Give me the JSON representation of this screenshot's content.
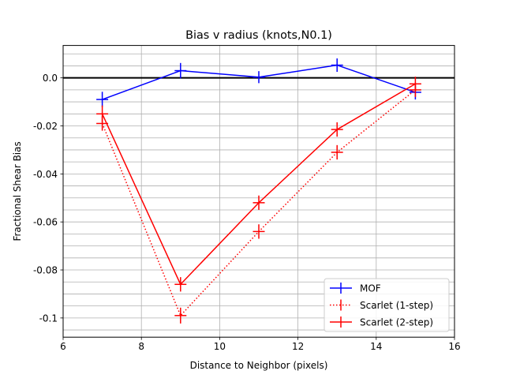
{
  "chart_data": {
    "type": "line",
    "title": "Bias v radius (knots,N0.1)",
    "xlabel": "Distance to Neighbor (pixels)",
    "ylabel": "Fractional Shear Bias",
    "xlim": [
      6,
      16
    ],
    "ylim": [
      -0.108,
      0.0135
    ],
    "xticks": [
      6,
      8,
      10,
      12,
      14,
      16
    ],
    "xtick_labels": [
      "6",
      "8",
      "10",
      "12",
      "14",
      "16"
    ],
    "yticks": [
      0.0,
      -0.02,
      -0.04,
      -0.06,
      -0.08,
      -0.1
    ],
    "ytick_labels": [
      "0.0",
      "-0.02",
      "-0.04",
      "-0.06",
      "-0.08",
      "-0.1"
    ],
    "grid": true,
    "minor_grid_step_y": 0.005,
    "reference_line_y": 0,
    "legend_position": "lower right",
    "series": [
      {
        "name": "MOF",
        "color": "#0000ff",
        "style": "solid",
        "x": [
          7,
          9,
          11,
          13,
          15
        ],
        "y": [
          -0.009,
          0.003,
          0.0003,
          0.0053,
          -0.006
        ],
        "err": [
          0.0032,
          0.0032,
          0.0025,
          0.0028,
          0.003
        ]
      },
      {
        "name": "Scarlet (1-step)",
        "color": "#ff0000",
        "style": "dotted",
        "x": [
          7,
          9,
          11,
          13,
          15
        ],
        "y": [
          -0.019,
          -0.099,
          -0.064,
          -0.031,
          -0.005
        ],
        "err": [
          0.003,
          0.0033,
          0.003,
          0.003,
          0.003
        ]
      },
      {
        "name": "Scarlet (2-step)",
        "color": "#ff0000",
        "style": "solid",
        "x": [
          7,
          9,
          11,
          13,
          15
        ],
        "y": [
          -0.015,
          -0.086,
          -0.052,
          -0.0215,
          -0.0025
        ],
        "err": [
          0.0035,
          0.003,
          0.003,
          0.003,
          0.003
        ]
      }
    ]
  }
}
